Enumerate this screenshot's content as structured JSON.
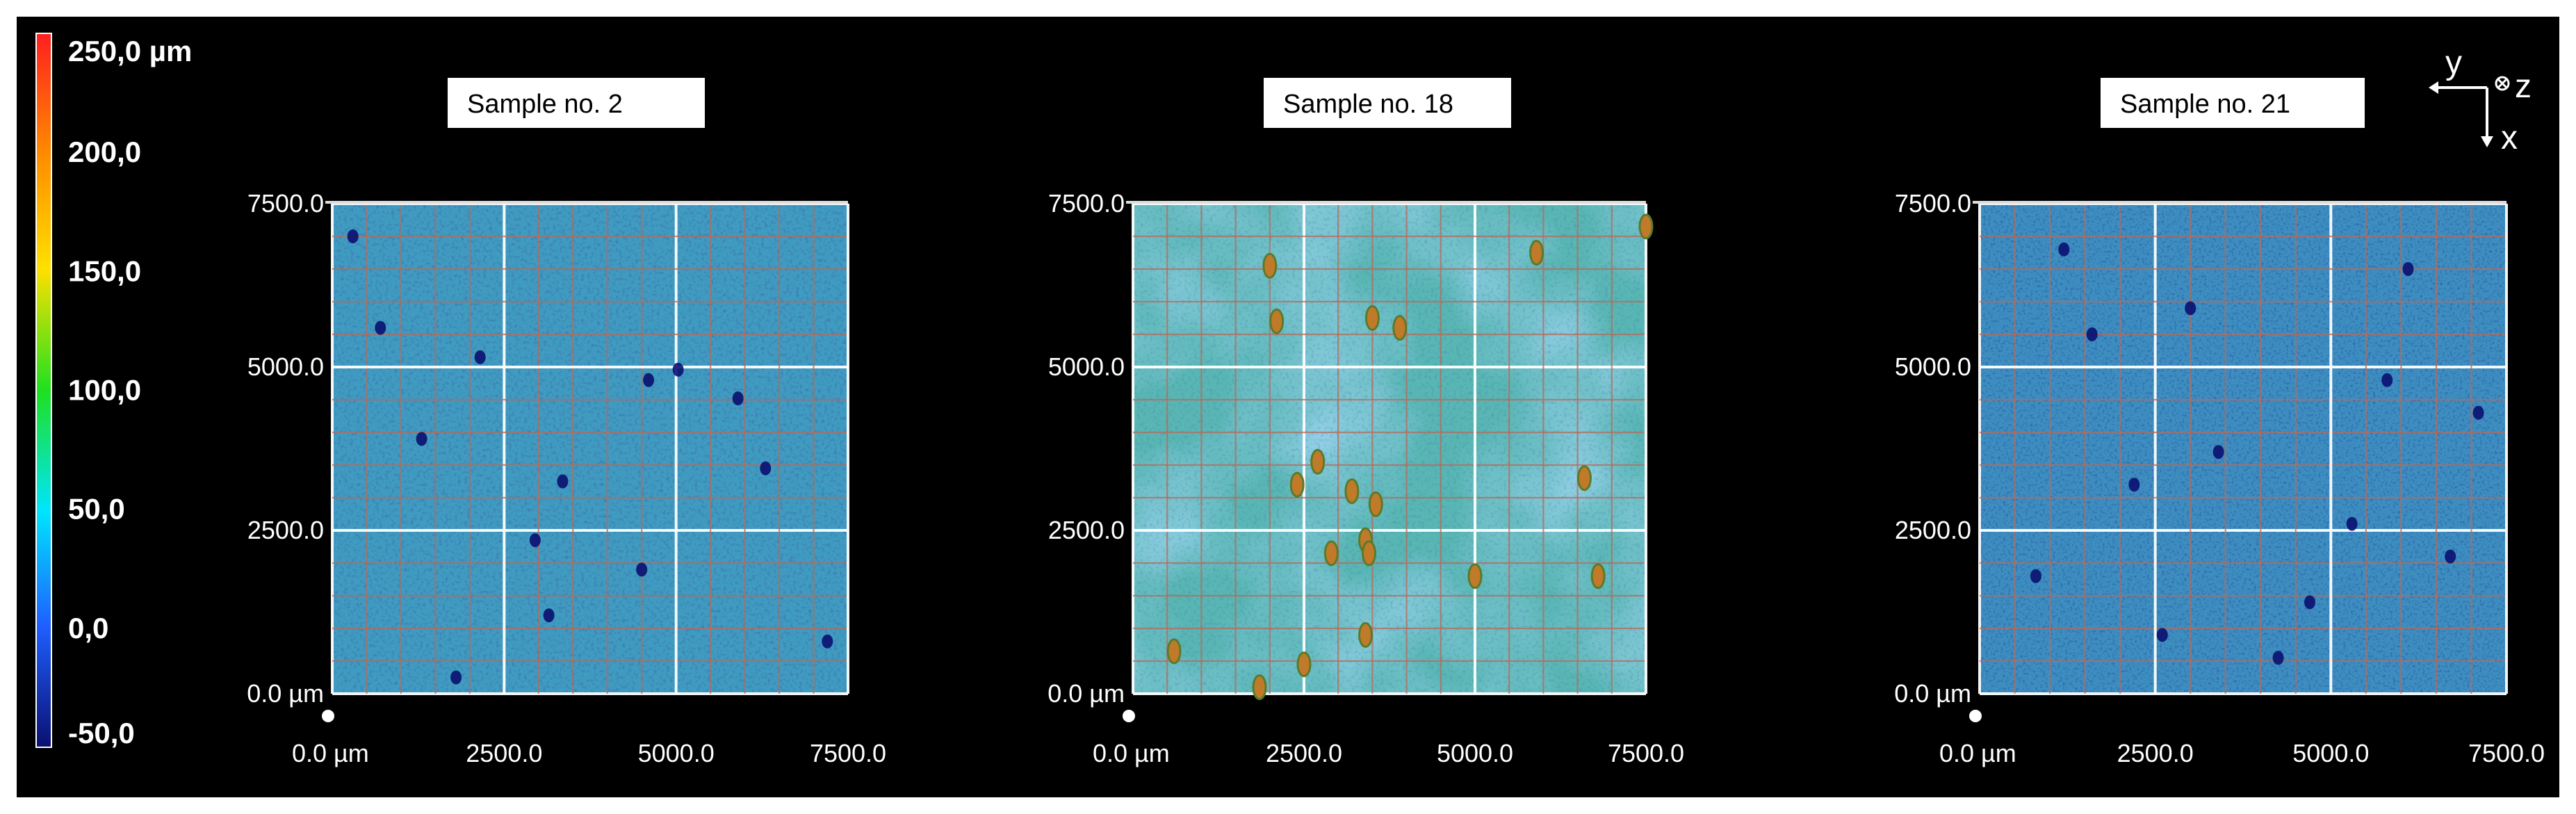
{
  "chart_data": {
    "type": "heatmap",
    "colorbar": {
      "labels": [
        "250,0 µm",
        "200,0",
        "150,0",
        "100,0",
        "50,0",
        "0,0",
        "-50,0"
      ],
      "values": [
        250,
        200,
        150,
        100,
        50,
        0,
        -50
      ],
      "unit": "µm",
      "colors": [
        "#ff1f1f",
        "#ff8c00",
        "#ffe000",
        "#1fe01f",
        "#00e5ff",
        "#1f5fff",
        "#0a1070"
      ]
    },
    "axes_indicator": {
      "y": "y",
      "z": "z",
      "x": "x"
    },
    "panels": [
      {
        "title": "Sample no. 2",
        "x_ticks": [
          "0.0 µm",
          "2500.0",
          "5000.0",
          "7500.0"
        ],
        "y_ticks": [
          "7500.0",
          "5000.0",
          "2500.0",
          "0.0 µm"
        ],
        "x_range": [
          0,
          7500
        ],
        "y_range": [
          0,
          7500
        ],
        "base_color": "#3f9bbf",
        "features": [
          {
            "x": 300,
            "y": 7000,
            "h": -40
          },
          {
            "x": 2150,
            "y": 5150,
            "h": -40
          },
          {
            "x": 5030,
            "y": 4960,
            "h": -45
          },
          {
            "x": 4600,
            "y": 4800,
            "h": -40
          },
          {
            "x": 5900,
            "y": 4520,
            "h": -45
          },
          {
            "x": 1300,
            "y": 3900,
            "h": -40
          },
          {
            "x": 3350,
            "y": 3250,
            "h": -35
          },
          {
            "x": 2950,
            "y": 2350,
            "h": -35
          },
          {
            "x": 4500,
            "y": 1900,
            "h": -35
          },
          {
            "x": 3150,
            "y": 1200,
            "h": -45
          },
          {
            "x": 7200,
            "y": 800,
            "h": -40
          },
          {
            "x": 1800,
            "y": 250,
            "h": -35
          },
          {
            "x": 6300,
            "y": 3450,
            "h": -30
          },
          {
            "x": 700,
            "y": 5600,
            "h": -30
          }
        ]
      },
      {
        "title": "Sample no. 18",
        "x_ticks": [
          "0.0 µm",
          "2500.0",
          "5000.0",
          "7500.0"
        ],
        "y_ticks": [
          "7500.0",
          "5000.0",
          "2500.0",
          "0.0 µm"
        ],
        "x_range": [
          0,
          7500
        ],
        "y_range": [
          0,
          7500
        ],
        "base_color": "#58b6b3",
        "features": [
          {
            "x": 2000,
            "y": 6550,
            "h": 180
          },
          {
            "x": 2100,
            "y": 5700,
            "h": 190
          },
          {
            "x": 3500,
            "y": 5750,
            "h": 170
          },
          {
            "x": 3900,
            "y": 5600,
            "h": 180
          },
          {
            "x": 5900,
            "y": 6750,
            "h": 175
          },
          {
            "x": 7500,
            "y": 7150,
            "h": 180
          },
          {
            "x": 2700,
            "y": 3550,
            "h": 185
          },
          {
            "x": 2400,
            "y": 3200,
            "h": 170
          },
          {
            "x": 3200,
            "y": 3100,
            "h": 180
          },
          {
            "x": 3550,
            "y": 2900,
            "h": 190
          },
          {
            "x": 3400,
            "y": 2350,
            "h": 185
          },
          {
            "x": 3450,
            "y": 2150,
            "h": 175
          },
          {
            "x": 2900,
            "y": 2150,
            "h": 180
          },
          {
            "x": 5000,
            "y": 1800,
            "h": 175
          },
          {
            "x": 6800,
            "y": 1800,
            "h": 170
          },
          {
            "x": 6600,
            "y": 3300,
            "h": 175
          },
          {
            "x": 3400,
            "y": 900,
            "h": 180
          },
          {
            "x": 600,
            "y": 650,
            "h": 185
          },
          {
            "x": 2500,
            "y": 450,
            "h": 170
          },
          {
            "x": 1850,
            "y": 100,
            "h": 175
          }
        ]
      },
      {
        "title": "Sample no. 21",
        "x_ticks": [
          "0.0 µm",
          "2500.0",
          "5000.0",
          "7500.0"
        ],
        "y_ticks": [
          "7500.0",
          "5000.0",
          "2500.0",
          "0.0 µm"
        ],
        "x_range": [
          0,
          7500
        ],
        "y_range": [
          0,
          7500
        ],
        "base_color": "#3d8fbf",
        "features": [
          {
            "x": 4250,
            "y": 550,
            "h": -48
          },
          {
            "x": 3000,
            "y": 5900,
            "h": -45
          },
          {
            "x": 7100,
            "y": 4300,
            "h": -40
          },
          {
            "x": 5300,
            "y": 2600,
            "h": -38
          },
          {
            "x": 1600,
            "y": 5500,
            "h": -40
          },
          {
            "x": 2200,
            "y": 3200,
            "h": -35
          },
          {
            "x": 6100,
            "y": 6500,
            "h": -38
          },
          {
            "x": 4700,
            "y": 1400,
            "h": -40
          },
          {
            "x": 800,
            "y": 1800,
            "h": -35
          },
          {
            "x": 5800,
            "y": 4800,
            "h": -38
          },
          {
            "x": 3400,
            "y": 3700,
            "h": -36
          },
          {
            "x": 6700,
            "y": 2100,
            "h": -38
          },
          {
            "x": 1200,
            "y": 6800,
            "h": -35
          },
          {
            "x": 2600,
            "y": 900,
            "h": -36
          }
        ]
      }
    ]
  }
}
